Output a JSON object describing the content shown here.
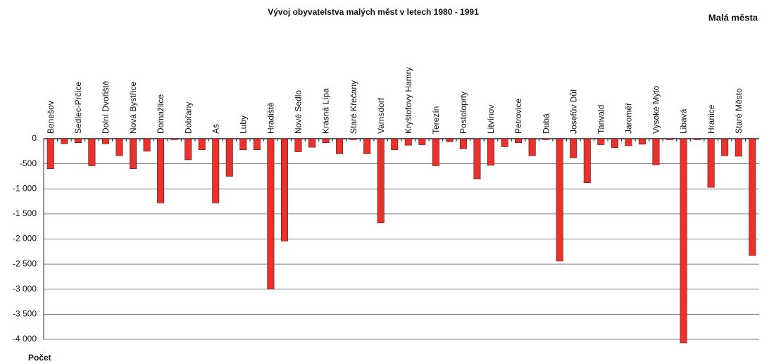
{
  "chart_data": {
    "type": "bar",
    "title": "Vývoj obyvatelstva malých měst v letech 1980 - 1991",
    "subtitle": "Malá města",
    "y_label": "Počet",
    "categories": [
      "Benešov",
      null,
      "Sedlec-Prčice",
      null,
      "Dolní Dvořiště",
      null,
      "Nová Bystřice",
      null,
      "Domažlice",
      null,
      "Dobřany",
      null,
      "Aš",
      null,
      "Luby",
      null,
      "Hradiště",
      null,
      "Nové Sedlo",
      null,
      "Krásná Lípa",
      null,
      "Staré Křečany",
      null,
      "Varnsdorf",
      null,
      "Kryštofovy Hamry",
      null,
      "Terezín",
      null,
      "Postoloprty",
      null,
      "Litvínov",
      null,
      "Petrovice",
      null,
      "Dubá",
      null,
      "Josefův Důl",
      null,
      "Tanvald",
      null,
      "Jaroměř",
      null,
      "Vysoké Mýto",
      null,
      "Libavá",
      null,
      "Hranice",
      null,
      "Staré Město",
      null
    ],
    "values": [
      -600,
      -100,
      -80,
      -540,
      -100,
      -340,
      -600,
      -250,
      -1280,
      -20,
      -420,
      -220,
      -1280,
      -750,
      -220,
      -220,
      -3000,
      -2040,
      -260,
      -170,
      -80,
      -300,
      -20,
      -300,
      -1680,
      -220,
      -130,
      -120,
      -540,
      -60,
      -200,
      -800,
      -530,
      -160,
      -80,
      -340,
      -20,
      -2440,
      -380,
      -880,
      -120,
      -180,
      -140,
      -110,
      -520,
      -20,
      -4070,
      -20,
      -970,
      -340,
      -350,
      -2330
    ],
    "color": "#e8322e",
    "ylim": [
      -4000,
      0
    ],
    "yticks": [
      0,
      -500,
      {
        "value": -1000,
        "label": "-1 000"
      },
      {
        "value": -1500,
        "label": "-1 500"
      },
      {
        "value": -2000,
        "label": "-2 000"
      },
      {
        "value": -2500,
        "label": "-2 500"
      },
      {
        "value": -3000,
        "label": "-3 000"
      },
      {
        "value": -3500,
        "label": "-3 500"
      },
      {
        "value": -4000,
        "label": "-4 000"
      }
    ],
    "grid": true
  }
}
